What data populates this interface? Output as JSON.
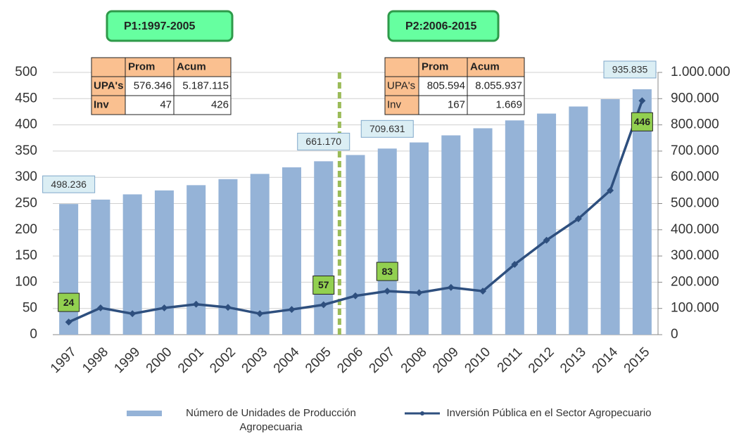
{
  "chart_data": {
    "type": "bar-line",
    "categories": [
      "1997",
      "1998",
      "1999",
      "2000",
      "2001",
      "2002",
      "2003",
      "2004",
      "2005",
      "2006",
      "2007",
      "2008",
      "2009",
      "2010",
      "2011",
      "2012",
      "2013",
      "2014",
      "2015"
    ],
    "series": [
      {
        "name": "Número de Unidades de Producción Agropecuaria",
        "type": "bar",
        "axis": "y2",
        "color": "#95b3d7",
        "values": [
          498236,
          515000,
          535000,
          550000,
          570000,
          593000,
          613000,
          638000,
          661170,
          685000,
          709631,
          733000,
          760000,
          787000,
          817000,
          843000,
          870000,
          898000,
          935835
        ],
        "value_labels": [
          "498.236",
          null,
          null,
          null,
          null,
          null,
          null,
          null,
          "661.170",
          null,
          "709.631",
          null,
          null,
          null,
          null,
          null,
          null,
          null,
          "935.835"
        ]
      },
      {
        "name": "Inversión Pública en el Sector Agropecuario",
        "type": "line",
        "axis": "y",
        "color": "#2e4f7e",
        "values": [
          24,
          51,
          40,
          51,
          58,
          52,
          40,
          48,
          57,
          74,
          83,
          80,
          90,
          83,
          134,
          180,
          221,
          275,
          446
        ],
        "value_labels": [
          "24",
          null,
          null,
          null,
          null,
          null,
          null,
          null,
          "57",
          null,
          "83",
          null,
          null,
          null,
          null,
          null,
          null,
          null,
          "446"
        ]
      }
    ],
    "ylim": [
      0,
      500
    ],
    "yticks": [
      0,
      50,
      100,
      150,
      200,
      250,
      300,
      350,
      400,
      450,
      500
    ],
    "y2lim": [
      0,
      1000000
    ],
    "y2ticks": [
      {
        "value": 0,
        "label": "0"
      },
      {
        "value": 100000,
        "label": "100.000"
      },
      {
        "value": 200000,
        "label": "200.000"
      },
      {
        "value": 300000,
        "label": "300.000"
      },
      {
        "value": 400000,
        "label": "400.000"
      },
      {
        "value": 500000,
        "label": "500.000"
      },
      {
        "value": 600000,
        "label": "600.000"
      },
      {
        "value": 700000,
        "label": "700.000"
      },
      {
        "value": 800000,
        "label": "800.000"
      },
      {
        "value": 900000,
        "label": "900.000"
      },
      {
        "value": 1000000,
        "label": "1.000.000"
      }
    ],
    "grid": true,
    "legend": "bottom",
    "tables": [
      {
        "title": "P1:1997-2005",
        "columns": [
          "Prom",
          "Acum"
        ],
        "rows": [
          {
            "label": "UPA's",
            "cells": [
              "576.346",
              "5.187.115"
            ]
          },
          {
            "label": "Inv",
            "cells": [
              "47",
              "426"
            ]
          }
        ]
      },
      {
        "title": "P2:2006-2015",
        "columns": [
          "Prom",
          "Acum"
        ],
        "rows": [
          {
            "label": "UPA's",
            "cells": [
              "805.594",
              "8.055.937"
            ]
          },
          {
            "label": "Inv",
            "cells": [
              "167",
              "1.669"
            ]
          }
        ]
      }
    ]
  }
}
